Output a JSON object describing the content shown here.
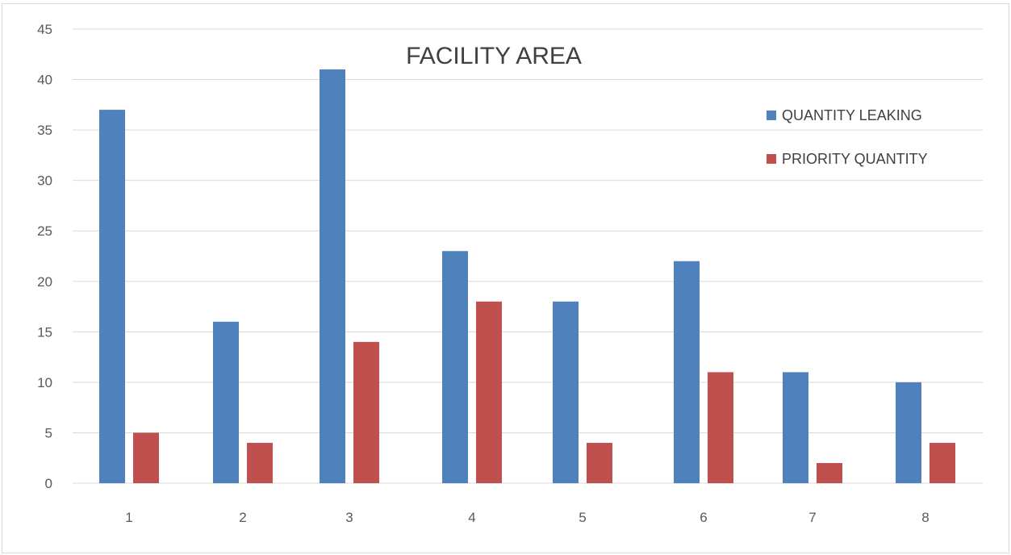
{
  "chart_data": {
    "type": "bar",
    "title": "FACILITY AREA",
    "xlabel": "",
    "ylabel": "",
    "categories": [
      "1",
      "2",
      "3",
      "4",
      "5",
      "6",
      "7",
      "8"
    ],
    "y_ticks": [
      "0",
      "5",
      "10",
      "15",
      "20",
      "25",
      "30",
      "35",
      "40",
      "45"
    ],
    "ylim": [
      0,
      45
    ],
    "grid": true,
    "legend_position": "top-right",
    "series": [
      {
        "name": "QUANTITY LEAKING",
        "color": "#4f81bd",
        "values": [
          37,
          16,
          41,
          23,
          18,
          22,
          11,
          10
        ]
      },
      {
        "name": "PRIORITY QUANTITY",
        "color": "#c0504d",
        "values": [
          5,
          4,
          14,
          18,
          4,
          11,
          2,
          4
        ]
      }
    ]
  }
}
